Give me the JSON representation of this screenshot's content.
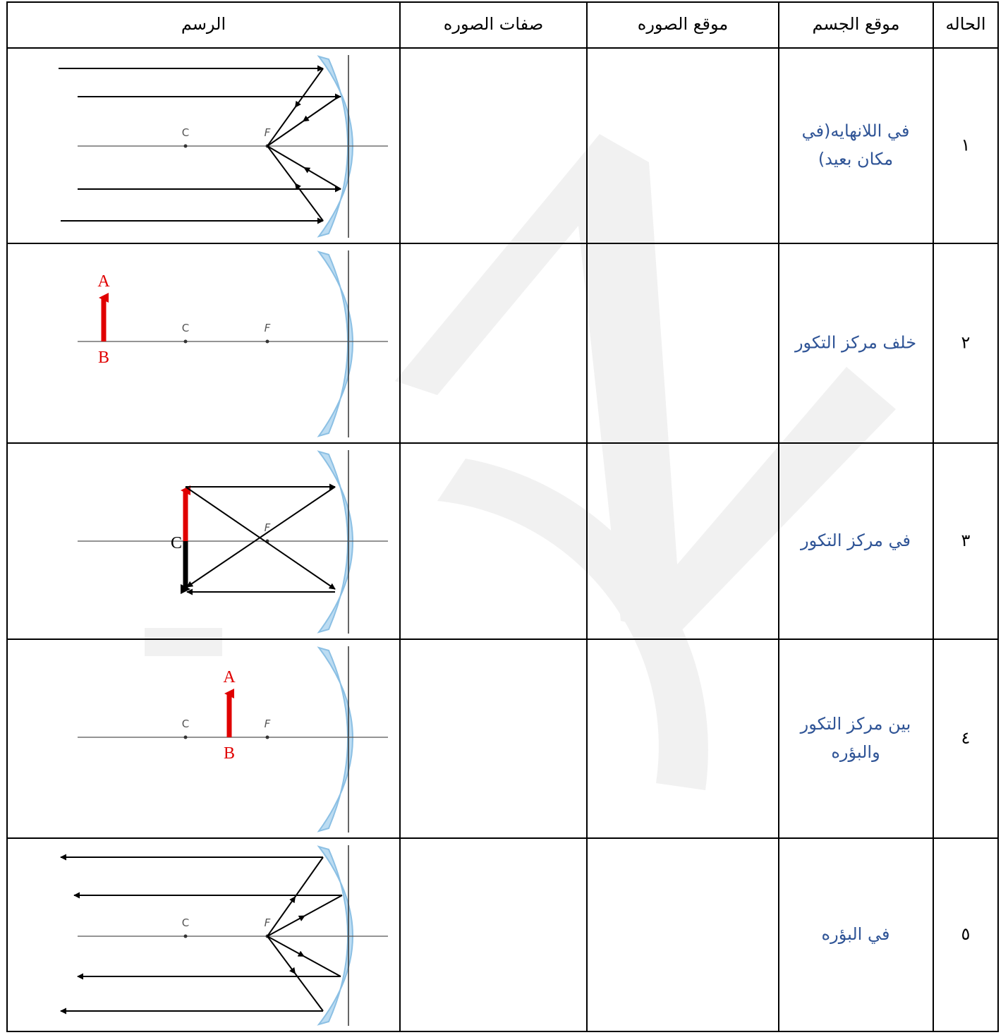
{
  "table": {
    "header": [
      "الرسم",
      "صفات الصوره",
      "موقع الصوره",
      "موقع الجسم",
      "الحاله"
    ],
    "rows": [
      {
        "case": "١",
        "object_position": [
          "في اللانهايه(في",
          "مكان بعيد)"
        ],
        "diagram": {
          "center": "C",
          "focus": "F"
        }
      },
      {
        "case": "٢",
        "object_position": [
          "خلف مركز التكور"
        ],
        "diagram": {
          "object_top": "A",
          "object_bottom": "B",
          "center": "C",
          "focus": "F"
        }
      },
      {
        "case": "٣",
        "object_position": [
          "في مركز التكور"
        ],
        "diagram": {
          "center": "C",
          "focus": "F"
        }
      },
      {
        "case": "٤",
        "object_position": [
          "بين مركز التكور",
          "والبؤره"
        ],
        "diagram": {
          "object_top": "A",
          "object_bottom": "B",
          "center": "C",
          "focus": "F"
        }
      },
      {
        "case": "٥",
        "object_position": [
          "في البؤره"
        ],
        "diagram": {
          "center": "C",
          "focus": "F"
        }
      }
    ]
  }
}
